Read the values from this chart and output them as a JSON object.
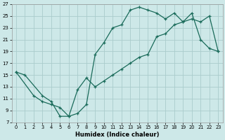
{
  "xlabel": "Humidex (Indice chaleur)",
  "background_color": "#cde8e8",
  "grid_color": "#aacccc",
  "line_color": "#1a6b5a",
  "xlim": [
    -0.5,
    23.5
  ],
  "ylim": [
    7,
    27
  ],
  "xticks": [
    0,
    1,
    2,
    3,
    4,
    5,
    6,
    7,
    8,
    9,
    10,
    11,
    12,
    13,
    14,
    15,
    16,
    17,
    18,
    19,
    20,
    21,
    22,
    23
  ],
  "yticks": [
    7,
    9,
    11,
    13,
    15,
    17,
    19,
    21,
    23,
    25,
    27
  ],
  "line1_x": [
    0,
    1,
    3,
    4,
    5,
    6,
    7,
    8,
    9,
    10,
    11,
    12,
    13,
    14,
    15,
    16,
    17,
    18,
    19,
    20,
    21,
    22,
    23
  ],
  "line1_y": [
    15.5,
    15.0,
    11.5,
    10.5,
    8.0,
    8.0,
    8.5,
    10.0,
    18.5,
    20.5,
    23.0,
    23.5,
    26.0,
    26.5,
    26.0,
    25.5,
    24.5,
    25.5,
    24.0,
    25.5,
    21.0,
    19.5,
    19.0
  ],
  "line2_x": [
    0,
    2,
    3,
    4,
    5,
    6,
    7,
    8,
    9,
    10,
    11,
    12,
    13,
    14,
    15,
    16,
    17,
    18,
    19,
    20,
    21,
    22,
    23
  ],
  "line2_y": [
    15.5,
    11.5,
    10.5,
    10.0,
    9.5,
    8.0,
    12.5,
    14.5,
    13.0,
    14.0,
    15.0,
    16.0,
    17.0,
    18.0,
    18.5,
    21.5,
    22.0,
    23.5,
    24.0,
    24.5,
    24.0,
    25.0,
    19.0
  ],
  "marker": "+"
}
